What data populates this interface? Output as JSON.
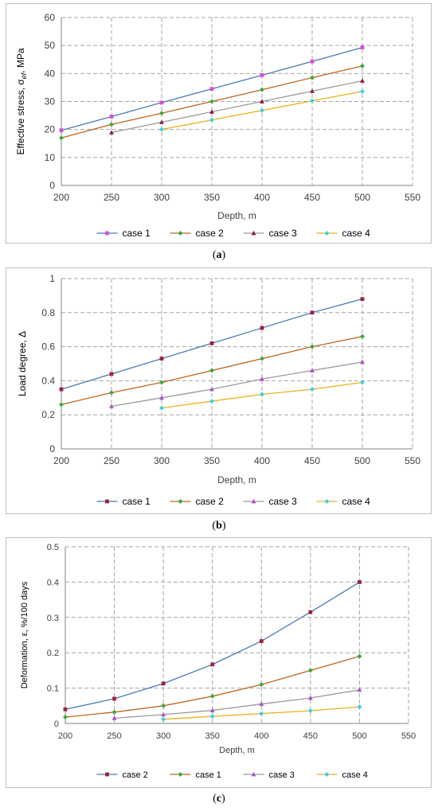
{
  "colors": {
    "grid": "#a6a6a6",
    "axis": "#808080",
    "text": "#404040"
  },
  "panels": [
    {
      "label": "a",
      "chart_data": {
        "type": "line",
        "xlabel": "Depth, m",
        "ylabel": "Effective stress, σef, MPa",
        "ylabel_main": "Effective stress, σ",
        "ylabel_sub": "ef",
        "ylabel_tail": ", MPa",
        "xlim": [
          200,
          550
        ],
        "ylim": [
          0,
          60
        ],
        "xticks": [
          200,
          250,
          300,
          350,
          400,
          450,
          500,
          550
        ],
        "yticks": [
          0,
          10,
          20,
          30,
          40,
          50,
          60
        ],
        "grid": true,
        "legend_position": "bottom",
        "series": [
          {
            "name": "case 1",
            "color": "#4a7ab5",
            "marker_color": "#d84fd8",
            "marker": "square",
            "x": [
              200,
              250,
              300,
              350,
              400,
              450,
              500
            ],
            "y": [
              19.7,
              24.6,
              29.6,
              34.5,
              39.4,
              44.3,
              49.3
            ]
          },
          {
            "name": "case 2",
            "color": "#c0651f",
            "marker_color": "#3ea63e",
            "marker": "diamond",
            "x": [
              200,
              250,
              300,
              350,
              400,
              450,
              500
            ],
            "y": [
              17.0,
              21.8,
              25.8,
              30.0,
              34.2,
              38.5,
              42.7
            ]
          },
          {
            "name": "case 3",
            "color": "#9a9a9a",
            "marker_color": "#8b1a4a",
            "marker": "triangle",
            "x": [
              250,
              300,
              350,
              400,
              450,
              500
            ],
            "y": [
              18.9,
              22.6,
              26.3,
              30.0,
              33.7,
              37.4
            ]
          },
          {
            "name": "case 4",
            "color": "#e8b21a",
            "marker_color": "#3ecfe0",
            "marker": "diamond",
            "x": [
              300,
              350,
              400,
              450,
              500
            ],
            "y": [
              20.0,
              23.4,
              26.8,
              30.2,
              33.6
            ]
          }
        ]
      }
    },
    {
      "label": "b",
      "chart_data": {
        "type": "line",
        "xlabel": "Depth, m",
        "ylabel": "Load degree, Δ",
        "ylabel_main": "Load degree, Δ",
        "ylabel_sub": "",
        "ylabel_tail": "",
        "xlim": [
          200,
          550
        ],
        "ylim": [
          0,
          1
        ],
        "xticks": [
          200,
          250,
          300,
          350,
          400,
          450,
          500,
          550
        ],
        "yticks": [
          0,
          0.2,
          0.4,
          0.6,
          0.8,
          1
        ],
        "grid": true,
        "legend_position": "bottom",
        "series": [
          {
            "name": "case 1",
            "color": "#4a7ab5",
            "marker_color": "#a0203c",
            "marker": "square",
            "x": [
              200,
              250,
              300,
              350,
              400,
              450,
              500
            ],
            "y": [
              0.35,
              0.44,
              0.53,
              0.62,
              0.71,
              0.8,
              0.88
            ]
          },
          {
            "name": "case 2",
            "color": "#c0651f",
            "marker_color": "#3ea63e",
            "marker": "diamond",
            "x": [
              200,
              250,
              300,
              350,
              400,
              450,
              500
            ],
            "y": [
              0.26,
              0.33,
              0.39,
              0.46,
              0.53,
              0.6,
              0.66
            ]
          },
          {
            "name": "case 3",
            "color": "#9a9a9a",
            "marker_color": "#b04fc8",
            "marker": "triangle",
            "x": [
              250,
              300,
              350,
              400,
              450,
              500
            ],
            "y": [
              0.25,
              0.3,
              0.35,
              0.41,
              0.46,
              0.51
            ]
          },
          {
            "name": "case 4",
            "color": "#e8b21a",
            "marker_color": "#3ecfe0",
            "marker": "diamond",
            "x": [
              300,
              350,
              400,
              450,
              500
            ],
            "y": [
              0.24,
              0.28,
              0.32,
              0.35,
              0.39
            ]
          }
        ]
      }
    },
    {
      "label": "c",
      "chart_data": {
        "type": "line",
        "xlabel": "Depth, m",
        "ylabel": "Deformation, ε, %/100 days",
        "ylabel_main": "Deformation, ε, %/100 days",
        "ylabel_sub": "",
        "ylabel_tail": "",
        "xlim": [
          200,
          550
        ],
        "ylim": [
          0,
          0.5
        ],
        "xticks": [
          200,
          250,
          300,
          350,
          400,
          450,
          500,
          550
        ],
        "yticks": [
          0,
          0.1,
          0.2,
          0.3,
          0.4,
          0.5
        ],
        "grid": true,
        "legend_position": "bottom",
        "series": [
          {
            "name": "case 2",
            "color": "#4a7ab5",
            "marker_color": "#a0203c",
            "marker": "square",
            "x": [
              200,
              250,
              300,
              350,
              400,
              450,
              500
            ],
            "y": [
              0.04,
              0.07,
              0.113,
              0.167,
              0.233,
              0.315,
              0.4
            ]
          },
          {
            "name": "case 1",
            "color": "#c0651f",
            "marker_color": "#3ea63e",
            "marker": "diamond",
            "x": [
              200,
              250,
              300,
              350,
              400,
              450,
              500
            ],
            "y": [
              0.018,
              0.032,
              0.05,
              0.077,
              0.11,
              0.15,
              0.19
            ]
          },
          {
            "name": "case 3",
            "color": "#9a9a9a",
            "marker_color": "#b04fc8",
            "marker": "triangle",
            "x": [
              250,
              300,
              350,
              400,
              450,
              500
            ],
            "y": [
              0.015,
              0.025,
              0.037,
              0.055,
              0.072,
              0.095
            ]
          },
          {
            "name": "case 4",
            "color": "#e8b21a",
            "marker_color": "#3ecfe0",
            "marker": "diamond",
            "x": [
              300,
              350,
              400,
              450,
              500
            ],
            "y": [
              0.012,
              0.02,
              0.028,
              0.036,
              0.047
            ]
          }
        ]
      }
    }
  ]
}
